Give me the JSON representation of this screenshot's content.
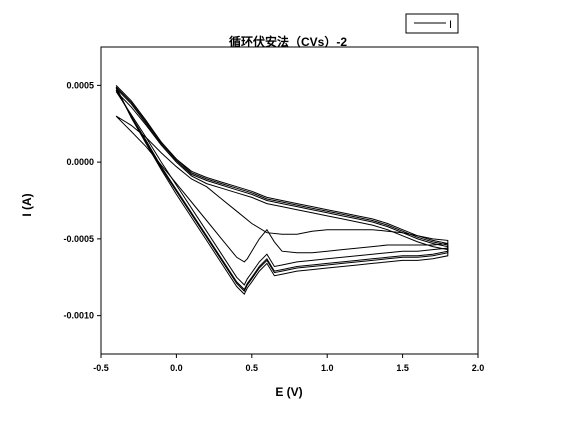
{
  "chart_data": {
    "type": "line",
    "title": "循环伏安法（CVs）-2",
    "xlabel": "E (V)",
    "ylabel": "I (A)",
    "xlim": [
      -0.5,
      2.0
    ],
    "ylim": [
      -0.00125,
      0.00075
    ],
    "x_ticks": [
      -0.5,
      0.0,
      0.5,
      1.0,
      1.5,
      2.0
    ],
    "x_tick_labels": [
      "-0.5",
      "0.0",
      "0.5",
      "1.0",
      "1.5",
      "2.0"
    ],
    "y_ticks": [
      0.0005,
      0.0,
      -0.0005,
      -0.001
    ],
    "y_tick_labels": [
      "0.0005",
      "0.0000",
      "-0.0005",
      "-0.0010"
    ],
    "grid": false,
    "legend": {
      "position": "top-right",
      "entries": [
        "I"
      ]
    },
    "series_color": "#000000",
    "series": [
      {
        "name": "I",
        "x": [
          -0.4,
          -0.3,
          -0.2,
          -0.1,
          0.0,
          0.1,
          0.2,
          0.3,
          0.4,
          0.5,
          0.6,
          0.7,
          0.8,
          0.9,
          1.0,
          1.1,
          1.2,
          1.3,
          1.4,
          1.5,
          1.6,
          1.7,
          1.8,
          1.8,
          1.7,
          1.6,
          1.5,
          1.4,
          1.3,
          1.2,
          1.1,
          1.0,
          0.9,
          0.8,
          0.7,
          0.65,
          0.6,
          0.55,
          0.5,
          0.47,
          0.45,
          0.4,
          0.3,
          0.2,
          0.1,
          0.0,
          -0.1,
          -0.2,
          -0.3,
          -0.4
        ],
        "y": [
          0.00048,
          0.00038,
          0.00025,
          0.00012,
          1e-05,
          -8e-05,
          -0.00012,
          -0.00015,
          -0.00018,
          -0.00021,
          -0.00025,
          -0.00027,
          -0.00029,
          -0.00031,
          -0.00033,
          -0.00035,
          -0.00037,
          -0.00039,
          -0.00042,
          -0.00046,
          -0.0005,
          -0.00053,
          -0.00055,
          -0.00058,
          -0.0006,
          -0.00061,
          -0.00061,
          -0.00062,
          -0.00063,
          -0.00064,
          -0.00065,
          -0.00066,
          -0.00067,
          -0.00068,
          -0.0007,
          -0.00071,
          -0.00063,
          -0.00068,
          -0.00075,
          -0.00079,
          -0.00083,
          -0.00078,
          -0.00063,
          -0.00048,
          -0.00033,
          -0.00018,
          -3e-05,
          0.00014,
          0.0003,
          0.00047
        ]
      },
      {
        "name": "",
        "x": [
          -0.4,
          -0.3,
          -0.2,
          -0.1,
          0.0,
          0.1,
          0.2,
          0.3,
          0.4,
          0.5,
          0.6,
          0.7,
          0.8,
          0.9,
          1.0,
          1.1,
          1.2,
          1.3,
          1.4,
          1.5,
          1.6,
          1.7,
          1.8,
          1.8,
          1.7,
          1.6,
          1.5,
          1.4,
          1.3,
          1.2,
          1.1,
          1.0,
          0.9,
          0.8,
          0.7,
          0.65,
          0.6,
          0.55,
          0.5,
          0.47,
          0.45,
          0.4,
          0.3,
          0.2,
          0.1,
          0.0,
          -0.1,
          -0.2,
          -0.3,
          -0.4
        ],
        "y": [
          0.0005,
          0.0004,
          0.00027,
          0.00013,
          2e-05,
          -6e-05,
          -0.0001,
          -0.00013,
          -0.00016,
          -0.00019,
          -0.00023,
          -0.00025,
          -0.00027,
          -0.00029,
          -0.00031,
          -0.00033,
          -0.00035,
          -0.00037,
          -0.0004,
          -0.00044,
          -0.00048,
          -0.00051,
          -0.00053,
          -0.00061,
          -0.00063,
          -0.00064,
          -0.00064,
          -0.00065,
          -0.00066,
          -0.00067,
          -0.00068,
          -0.00069,
          -0.0007,
          -0.00071,
          -0.00073,
          -0.00074,
          -0.00066,
          -0.00071,
          -0.00078,
          -0.00082,
          -0.00086,
          -0.00081,
          -0.00066,
          -0.00051,
          -0.00036,
          -0.00021,
          -5e-05,
          0.00012,
          0.00029,
          0.00049
        ]
      },
      {
        "name": "",
        "x": [
          -0.4,
          -0.3,
          -0.2,
          -0.1,
          0.0,
          0.1,
          0.2,
          0.3,
          0.4,
          0.5,
          0.6,
          0.7,
          0.8,
          0.9,
          1.0,
          1.1,
          1.2,
          1.3,
          1.4,
          1.5,
          1.6,
          1.7,
          1.8,
          1.8,
          1.7,
          1.6,
          1.5,
          1.4,
          1.3,
          1.2,
          1.1,
          1.0,
          0.9,
          0.8,
          0.7,
          0.65,
          0.6,
          0.55,
          0.5,
          0.47,
          0.45,
          0.4,
          0.3,
          0.2,
          0.1,
          0.0,
          -0.1,
          -0.2,
          -0.3,
          -0.4
        ],
        "y": [
          0.00046,
          0.00036,
          0.00024,
          0.00011,
          0.0,
          -9e-05,
          -0.00014,
          -0.00017,
          -0.0002,
          -0.00023,
          -0.00027,
          -0.00029,
          -0.00031,
          -0.00033,
          -0.00035,
          -0.00037,
          -0.00039,
          -0.00041,
          -0.00044,
          -0.00048,
          -0.00052,
          -0.00055,
          -0.00057,
          -0.00056,
          -0.00057,
          -0.00058,
          -0.00058,
          -0.00059,
          -0.0006,
          -0.00061,
          -0.00062,
          -0.00063,
          -0.00064,
          -0.00065,
          -0.00067,
          -0.00068,
          -0.0006,
          -0.00065,
          -0.00072,
          -0.00076,
          -0.0008,
          -0.00075,
          -0.0006,
          -0.00045,
          -0.0003,
          -0.00015,
          0.0,
          0.00016,
          0.00031,
          0.00046
        ]
      },
      {
        "name": "",
        "x": [
          -0.4,
          -0.3,
          -0.2,
          -0.1,
          0.0,
          0.1,
          0.2,
          0.3,
          0.4,
          0.5,
          0.6,
          0.7,
          0.8,
          0.9,
          1.0,
          1.1,
          1.2,
          1.3,
          1.4,
          1.5,
          1.6,
          1.7,
          1.8,
          1.8,
          1.7,
          1.6,
          1.5,
          1.4,
          1.3,
          1.2,
          1.1,
          1.0,
          0.9,
          0.8,
          0.7,
          0.65,
          0.6,
          0.55,
          0.5,
          0.47,
          0.45,
          0.4,
          0.3,
          0.2,
          0.1,
          0.0,
          -0.1,
          -0.2,
          -0.3,
          -0.4
        ],
        "y": [
          0.00049,
          0.00039,
          0.00026,
          0.00013,
          2e-05,
          -7e-05,
          -0.00011,
          -0.00014,
          -0.00017,
          -0.0002,
          -0.00024,
          -0.00026,
          -0.00028,
          -0.0003,
          -0.00032,
          -0.00034,
          -0.00036,
          -0.00038,
          -0.00041,
          -0.00045,
          -0.00049,
          -0.00052,
          -0.00054,
          -0.00059,
          -0.00061,
          -0.00062,
          -0.00062,
          -0.00063,
          -0.00064,
          -0.00065,
          -0.00066,
          -0.00067,
          -0.00068,
          -0.00069,
          -0.00071,
          -0.00072,
          -0.00064,
          -0.00069,
          -0.00076,
          -0.0008,
          -0.00084,
          -0.00079,
          -0.00064,
          -0.00049,
          -0.00034,
          -0.00019,
          -4e-05,
          0.00013,
          0.0003,
          0.00048
        ]
      },
      {
        "name": "",
        "x": [
          -0.4,
          -0.3,
          -0.2,
          -0.1,
          0.0,
          0.1,
          0.2,
          0.3,
          0.4,
          0.5,
          0.6,
          0.7,
          0.8,
          0.9,
          1.0,
          1.1,
          1.2,
          1.3,
          1.4,
          1.5,
          1.6,
          1.7,
          1.8,
          1.8,
          1.7,
          1.6,
          1.5,
          1.4,
          1.3,
          1.2,
          1.1,
          1.0,
          0.9,
          0.8,
          0.7,
          0.65,
          0.6,
          0.55,
          0.5,
          0.47,
          0.45,
          0.4,
          0.3,
          0.2,
          0.1,
          0.0,
          -0.1,
          -0.2,
          -0.3,
          -0.4
        ],
        "y": [
          0.0003,
          0.00024,
          0.00016,
          6e-05,
          -3e-05,
          -0.00011,
          -0.00016,
          -0.00024,
          -0.00032,
          -0.0004,
          -0.00046,
          -0.00047,
          -0.00047,
          -0.00045,
          -0.00044,
          -0.00044,
          -0.00044,
          -0.00044,
          -0.00045,
          -0.00046,
          -0.00048,
          -0.0005,
          -0.00051,
          -0.00053,
          -0.00054,
          -0.00054,
          -0.00054,
          -0.00054,
          -0.00055,
          -0.00056,
          -0.00057,
          -0.00058,
          -0.00059,
          -0.00059,
          -0.00058,
          -0.00052,
          -0.00044,
          -0.0005,
          -0.00058,
          -0.00063,
          -0.00065,
          -0.00062,
          -0.0005,
          -0.00038,
          -0.00026,
          -0.00014,
          -2e-05,
          0.0001,
          0.0002,
          0.0003
        ]
      }
    ]
  }
}
